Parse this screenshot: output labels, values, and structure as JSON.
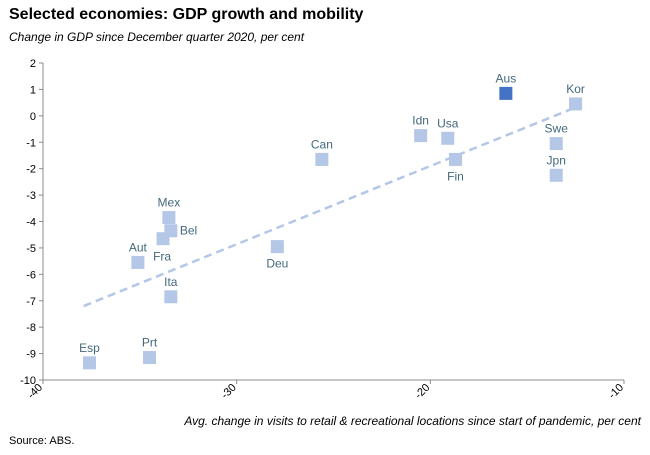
{
  "chart_data": {
    "type": "scatter",
    "title": "Selected economies: GDP growth and mobility",
    "subtitle": "Change in GDP since December quarter 2020,  per cent",
    "xlabel": "Avg. change in visits to retail & recreational locations since start of pandemic, per cent",
    "ylabel": "",
    "xlim": [
      -40,
      -10
    ],
    "ylim": [
      -10,
      2
    ],
    "xticks": [
      -40,
      -30,
      -20,
      -10
    ],
    "yticks": [
      2,
      1,
      0,
      -1,
      -2,
      -3,
      -4,
      -5,
      -6,
      -7,
      -8,
      -9,
      -10
    ],
    "grid": false,
    "legend": "none",
    "colors": {
      "point": "#b4c7e7",
      "highlight": "#4472c4",
      "label": "#44697d",
      "trend": "#b4c7e7"
    },
    "points": [
      {
        "label": "Aus",
        "x": -16.1,
        "y": 0.85,
        "highlight": true,
        "label_pos": "above"
      },
      {
        "label": "Kor",
        "x": -12.5,
        "y": 0.45,
        "label_pos": "above"
      },
      {
        "label": "Idn",
        "x": -20.5,
        "y": -0.75,
        "label_pos": "above"
      },
      {
        "label": "Usa",
        "x": -19.1,
        "y": -0.85,
        "label_pos": "above"
      },
      {
        "label": "Swe",
        "x": -13.5,
        "y": -1.05,
        "label_pos": "above"
      },
      {
        "label": "Can",
        "x": -25.6,
        "y": -1.65,
        "label_pos": "above"
      },
      {
        "label": "Fin",
        "x": -18.7,
        "y": -1.65,
        "label_pos": "below"
      },
      {
        "label": "Jpn",
        "x": -13.5,
        "y": -2.25,
        "label_pos": "above"
      },
      {
        "label": "Mex",
        "x": -33.5,
        "y": -3.85,
        "label_pos": "above"
      },
      {
        "label": "Bel",
        "x": -33.4,
        "y": -4.35,
        "label_pos": "right"
      },
      {
        "label": "Fra",
        "x": -33.8,
        "y": -4.65,
        "label_pos": "below-right"
      },
      {
        "label": "Deu",
        "x": -27.9,
        "y": -4.95,
        "label_pos": "below"
      },
      {
        "label": "Aut",
        "x": -35.1,
        "y": -5.55,
        "label_pos": "above"
      },
      {
        "label": "Ita",
        "x": -33.4,
        "y": -6.85,
        "label_pos": "above"
      },
      {
        "label": "Prt",
        "x": -34.5,
        "y": -9.15,
        "label_pos": "above"
      },
      {
        "label": "Esp",
        "x": -37.6,
        "y": -9.35,
        "label_pos": "above"
      }
    ],
    "trendline": {
      "x": [
        -37.9,
        -12.4
      ],
      "y": [
        -7.2,
        0.35
      ]
    },
    "source": "Source: ABS."
  }
}
